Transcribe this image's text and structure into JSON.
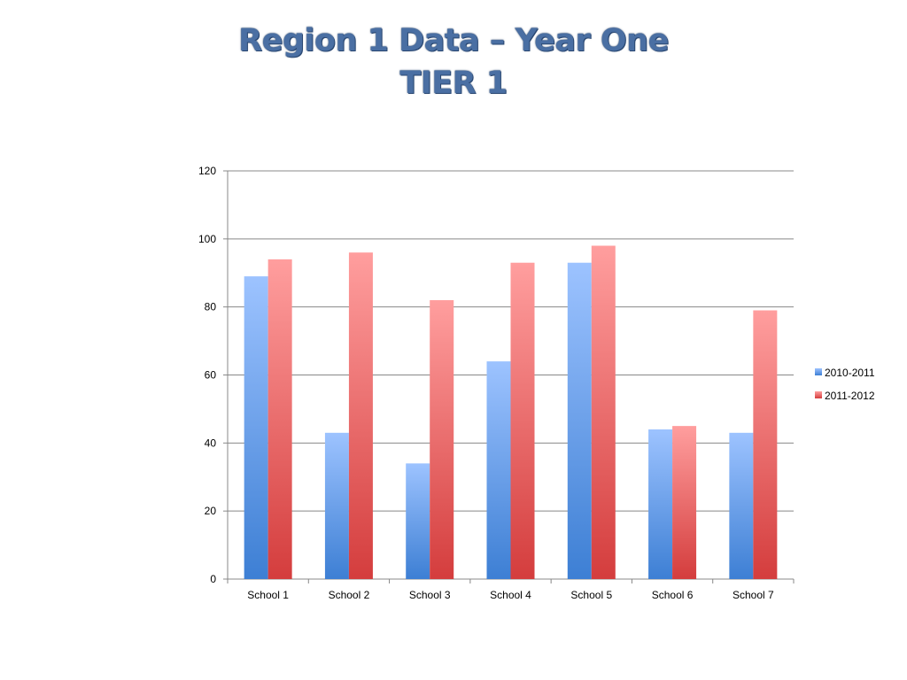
{
  "slide": {
    "title_line1": "Region 1 Data – Year One",
    "title_line2": "TIER 1"
  },
  "chart_data": {
    "type": "bar",
    "categories": [
      "School 1",
      "School 2",
      "School 3",
      "School 4",
      "School 5",
      "School 6",
      "School 7"
    ],
    "series": [
      {
        "name": "2010-2011",
        "values": [
          89,
          43,
          34,
          64,
          93,
          44,
          43
        ],
        "color_top": "#9dc3ff",
        "color_bottom": "#3d7fd4"
      },
      {
        "name": "2011-2012",
        "values": [
          94,
          96,
          82,
          93,
          98,
          45,
          79
        ],
        "color_top": "#ff9e9e",
        "color_bottom": "#d43d3d"
      }
    ],
    "y_ticks": [
      "0",
      "20",
      "40",
      "60",
      "80",
      "100",
      "120"
    ],
    "ylim": [
      0,
      120
    ],
    "grid": true,
    "legend_position": "right",
    "title": "",
    "xlabel": "",
    "ylabel": ""
  }
}
